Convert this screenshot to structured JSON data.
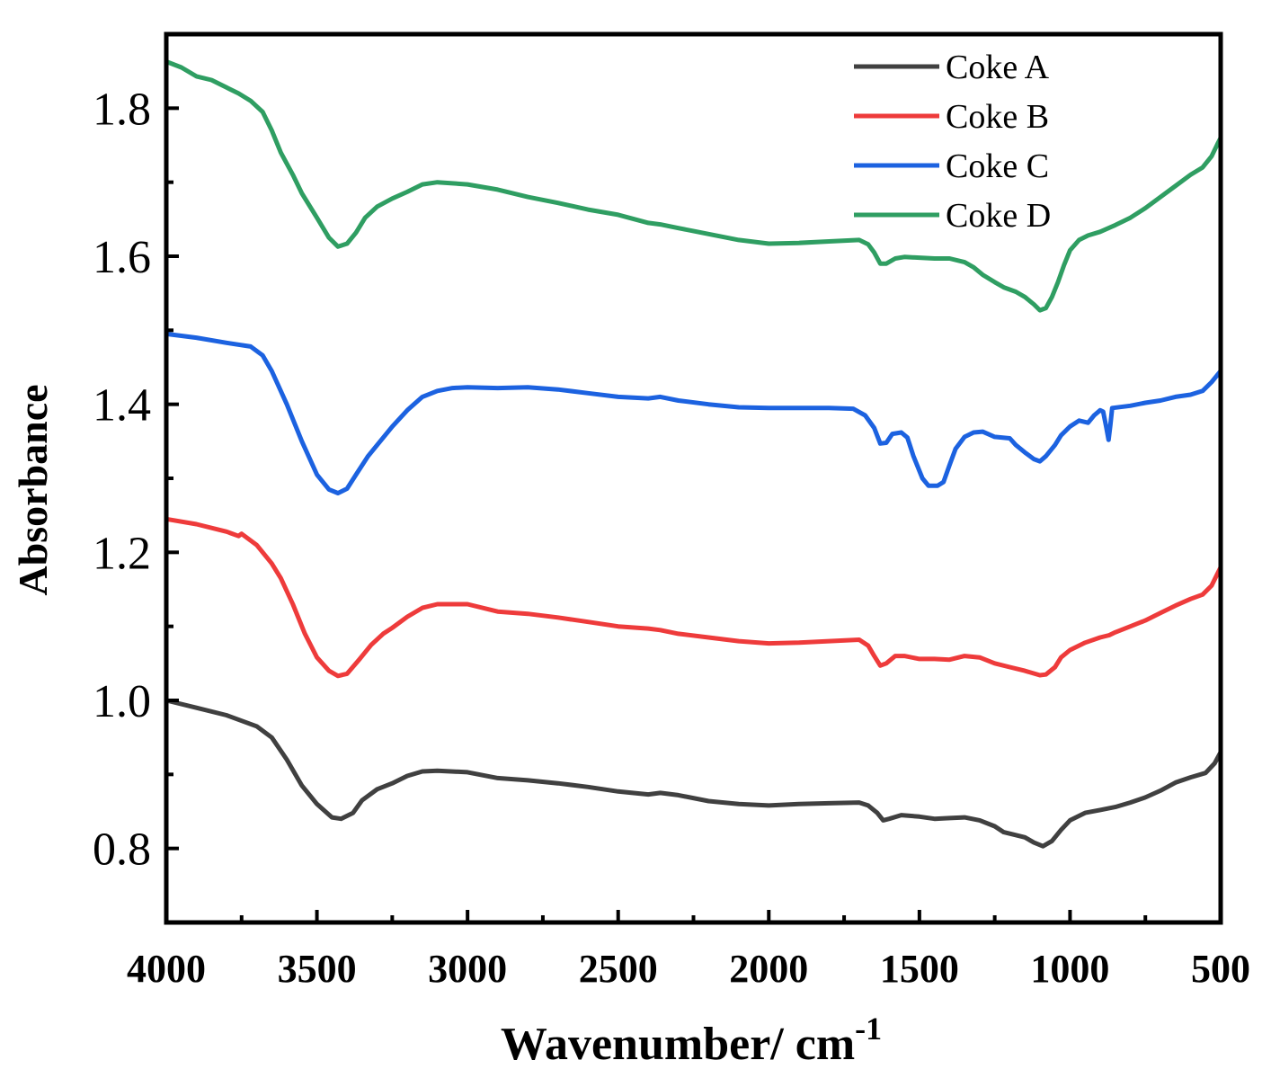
{
  "chart_data": {
    "type": "line",
    "title": "",
    "xlabel": "Wavenumber/ cm",
    "xlabel_superscript": "-1",
    "ylabel": "Absorbance",
    "xlim": [
      4000,
      500
    ],
    "ylim": [
      0.7,
      1.9
    ],
    "x_reversed": true,
    "x_ticks": [
      4000,
      3500,
      3000,
      2500,
      2000,
      1500,
      1000,
      500
    ],
    "x_tick_labels": [
      "4000",
      "3500",
      "3000",
      "2500",
      "2000",
      "1500",
      "1000",
      "500"
    ],
    "y_ticks": [
      0.8,
      1.0,
      1.2,
      1.4,
      1.6,
      1.8
    ],
    "y_tick_labels": [
      "0.8",
      "1.0",
      "1.2",
      "1.4",
      "1.6",
      "1.8"
    ],
    "grid": false,
    "legend_position": "top-right",
    "series": [
      {
        "name": "Coke A",
        "color": "#404040",
        "points": [
          [
            4000,
            1.0
          ],
          [
            3900,
            0.99
          ],
          [
            3800,
            0.98
          ],
          [
            3700,
            0.965
          ],
          [
            3650,
            0.95
          ],
          [
            3600,
            0.92
          ],
          [
            3550,
            0.885
          ],
          [
            3500,
            0.86
          ],
          [
            3450,
            0.842
          ],
          [
            3420,
            0.84
          ],
          [
            3380,
            0.848
          ],
          [
            3350,
            0.865
          ],
          [
            3300,
            0.88
          ],
          [
            3250,
            0.888
          ],
          [
            3200,
            0.898
          ],
          [
            3150,
            0.904
          ],
          [
            3100,
            0.905
          ],
          [
            3000,
            0.903
          ],
          [
            2900,
            0.895
          ],
          [
            2800,
            0.892
          ],
          [
            2700,
            0.888
          ],
          [
            2600,
            0.883
          ],
          [
            2500,
            0.877
          ],
          [
            2400,
            0.873
          ],
          [
            2360,
            0.875
          ],
          [
            2300,
            0.872
          ],
          [
            2200,
            0.864
          ],
          [
            2100,
            0.86
          ],
          [
            2000,
            0.858
          ],
          [
            1900,
            0.86
          ],
          [
            1800,
            0.861
          ],
          [
            1700,
            0.862
          ],
          [
            1670,
            0.858
          ],
          [
            1640,
            0.848
          ],
          [
            1620,
            0.838
          ],
          [
            1600,
            0.84
          ],
          [
            1560,
            0.845
          ],
          [
            1500,
            0.843
          ],
          [
            1450,
            0.84
          ],
          [
            1400,
            0.841
          ],
          [
            1350,
            0.842
          ],
          [
            1300,
            0.838
          ],
          [
            1250,
            0.83
          ],
          [
            1220,
            0.822
          ],
          [
            1200,
            0.82
          ],
          [
            1150,
            0.815
          ],
          [
            1120,
            0.808
          ],
          [
            1090,
            0.803
          ],
          [
            1060,
            0.81
          ],
          [
            1030,
            0.825
          ],
          [
            1000,
            0.838
          ],
          [
            950,
            0.848
          ],
          [
            900,
            0.852
          ],
          [
            850,
            0.856
          ],
          [
            800,
            0.862
          ],
          [
            750,
            0.869
          ],
          [
            700,
            0.878
          ],
          [
            650,
            0.889
          ],
          [
            600,
            0.896
          ],
          [
            550,
            0.902
          ],
          [
            520,
            0.915
          ],
          [
            500,
            0.93
          ]
        ]
      },
      {
        "name": "Coke B",
        "color": "#ee3b3b",
        "points": [
          [
            4000,
            1.245
          ],
          [
            3900,
            1.238
          ],
          [
            3800,
            1.228
          ],
          [
            3760,
            1.222
          ],
          [
            3750,
            1.225
          ],
          [
            3700,
            1.21
          ],
          [
            3650,
            1.185
          ],
          [
            3620,
            1.165
          ],
          [
            3580,
            1.13
          ],
          [
            3540,
            1.09
          ],
          [
            3500,
            1.058
          ],
          [
            3460,
            1.04
          ],
          [
            3430,
            1.033
          ],
          [
            3400,
            1.036
          ],
          [
            3360,
            1.055
          ],
          [
            3320,
            1.075
          ],
          [
            3280,
            1.09
          ],
          [
            3250,
            1.098
          ],
          [
            3200,
            1.113
          ],
          [
            3150,
            1.125
          ],
          [
            3100,
            1.13
          ],
          [
            3000,
            1.13
          ],
          [
            2900,
            1.12
          ],
          [
            2800,
            1.117
          ],
          [
            2700,
            1.112
          ],
          [
            2600,
            1.106
          ],
          [
            2500,
            1.1
          ],
          [
            2400,
            1.097
          ],
          [
            2360,
            1.095
          ],
          [
            2300,
            1.09
          ],
          [
            2200,
            1.085
          ],
          [
            2100,
            1.08
          ],
          [
            2000,
            1.077
          ],
          [
            1900,
            1.078
          ],
          [
            1800,
            1.08
          ],
          [
            1700,
            1.082
          ],
          [
            1670,
            1.074
          ],
          [
            1650,
            1.06
          ],
          [
            1630,
            1.047
          ],
          [
            1610,
            1.05
          ],
          [
            1580,
            1.06
          ],
          [
            1550,
            1.06
          ],
          [
            1500,
            1.056
          ],
          [
            1450,
            1.056
          ],
          [
            1400,
            1.055
          ],
          [
            1350,
            1.06
          ],
          [
            1300,
            1.058
          ],
          [
            1250,
            1.05
          ],
          [
            1200,
            1.045
          ],
          [
            1150,
            1.04
          ],
          [
            1100,
            1.034
          ],
          [
            1080,
            1.035
          ],
          [
            1050,
            1.045
          ],
          [
            1030,
            1.058
          ],
          [
            1000,
            1.068
          ],
          [
            950,
            1.078
          ],
          [
            900,
            1.085
          ],
          [
            870,
            1.088
          ],
          [
            850,
            1.092
          ],
          [
            800,
            1.1
          ],
          [
            750,
            1.108
          ],
          [
            700,
            1.118
          ],
          [
            650,
            1.128
          ],
          [
            600,
            1.137
          ],
          [
            560,
            1.143
          ],
          [
            530,
            1.155
          ],
          [
            500,
            1.18
          ]
        ]
      },
      {
        "name": "Coke C",
        "color": "#1c62e0",
        "points": [
          [
            4000,
            1.495
          ],
          [
            3900,
            1.49
          ],
          [
            3800,
            1.483
          ],
          [
            3720,
            1.478
          ],
          [
            3680,
            1.466
          ],
          [
            3650,
            1.445
          ],
          [
            3600,
            1.4
          ],
          [
            3550,
            1.35
          ],
          [
            3500,
            1.305
          ],
          [
            3460,
            1.285
          ],
          [
            3430,
            1.28
          ],
          [
            3400,
            1.286
          ],
          [
            3370,
            1.305
          ],
          [
            3330,
            1.33
          ],
          [
            3300,
            1.345
          ],
          [
            3250,
            1.37
          ],
          [
            3200,
            1.392
          ],
          [
            3150,
            1.41
          ],
          [
            3100,
            1.418
          ],
          [
            3050,
            1.422
          ],
          [
            3000,
            1.423
          ],
          [
            2900,
            1.422
          ],
          [
            2800,
            1.423
          ],
          [
            2700,
            1.42
          ],
          [
            2600,
            1.415
          ],
          [
            2500,
            1.41
          ],
          [
            2400,
            1.408
          ],
          [
            2360,
            1.41
          ],
          [
            2300,
            1.405
          ],
          [
            2200,
            1.4
          ],
          [
            2100,
            1.396
          ],
          [
            2000,
            1.395
          ],
          [
            1900,
            1.395
          ],
          [
            1800,
            1.395
          ],
          [
            1720,
            1.394
          ],
          [
            1680,
            1.385
          ],
          [
            1650,
            1.368
          ],
          [
            1630,
            1.347
          ],
          [
            1610,
            1.348
          ],
          [
            1590,
            1.36
          ],
          [
            1560,
            1.362
          ],
          [
            1540,
            1.355
          ],
          [
            1520,
            1.33
          ],
          [
            1490,
            1.3
          ],
          [
            1470,
            1.29
          ],
          [
            1440,
            1.29
          ],
          [
            1420,
            1.295
          ],
          [
            1400,
            1.318
          ],
          [
            1380,
            1.34
          ],
          [
            1350,
            1.356
          ],
          [
            1320,
            1.362
          ],
          [
            1290,
            1.363
          ],
          [
            1250,
            1.356
          ],
          [
            1200,
            1.354
          ],
          [
            1180,
            1.345
          ],
          [
            1150,
            1.335
          ],
          [
            1120,
            1.326
          ],
          [
            1100,
            1.323
          ],
          [
            1080,
            1.33
          ],
          [
            1050,
            1.345
          ],
          [
            1030,
            1.358
          ],
          [
            1000,
            1.37
          ],
          [
            970,
            1.378
          ],
          [
            940,
            1.375
          ],
          [
            920,
            1.385
          ],
          [
            900,
            1.392
          ],
          [
            890,
            1.39
          ],
          [
            880,
            1.37
          ],
          [
            872,
            1.352
          ],
          [
            866,
            1.372
          ],
          [
            860,
            1.395
          ],
          [
            800,
            1.398
          ],
          [
            750,
            1.402
          ],
          [
            700,
            1.405
          ],
          [
            650,
            1.41
          ],
          [
            600,
            1.413
          ],
          [
            560,
            1.418
          ],
          [
            530,
            1.43
          ],
          [
            500,
            1.445
          ]
        ]
      },
      {
        "name": "Coke D",
        "color": "#2f9e62",
        "points": [
          [
            4000,
            1.863
          ],
          [
            3950,
            1.855
          ],
          [
            3900,
            1.843
          ],
          [
            3850,
            1.838
          ],
          [
            3800,
            1.828
          ],
          [
            3760,
            1.82
          ],
          [
            3720,
            1.81
          ],
          [
            3680,
            1.795
          ],
          [
            3650,
            1.77
          ],
          [
            3620,
            1.74
          ],
          [
            3580,
            1.71
          ],
          [
            3550,
            1.685
          ],
          [
            3500,
            1.652
          ],
          [
            3460,
            1.625
          ],
          [
            3430,
            1.613
          ],
          [
            3400,
            1.617
          ],
          [
            3370,
            1.632
          ],
          [
            3340,
            1.652
          ],
          [
            3300,
            1.667
          ],
          [
            3250,
            1.678
          ],
          [
            3200,
            1.687
          ],
          [
            3150,
            1.697
          ],
          [
            3100,
            1.7
          ],
          [
            3000,
            1.697
          ],
          [
            2900,
            1.69
          ],
          [
            2800,
            1.68
          ],
          [
            2700,
            1.672
          ],
          [
            2600,
            1.663
          ],
          [
            2500,
            1.656
          ],
          [
            2400,
            1.645
          ],
          [
            2360,
            1.643
          ],
          [
            2300,
            1.638
          ],
          [
            2200,
            1.63
          ],
          [
            2100,
            1.622
          ],
          [
            2000,
            1.617
          ],
          [
            1900,
            1.618
          ],
          [
            1800,
            1.62
          ],
          [
            1700,
            1.622
          ],
          [
            1670,
            1.616
          ],
          [
            1650,
            1.605
          ],
          [
            1630,
            1.59
          ],
          [
            1610,
            1.59
          ],
          [
            1580,
            1.597
          ],
          [
            1550,
            1.599
          ],
          [
            1500,
            1.598
          ],
          [
            1450,
            1.597
          ],
          [
            1400,
            1.597
          ],
          [
            1350,
            1.592
          ],
          [
            1320,
            1.585
          ],
          [
            1290,
            1.575
          ],
          [
            1250,
            1.565
          ],
          [
            1220,
            1.558
          ],
          [
            1180,
            1.552
          ],
          [
            1150,
            1.545
          ],
          [
            1120,
            1.535
          ],
          [
            1100,
            1.527
          ],
          [
            1080,
            1.53
          ],
          [
            1060,
            1.545
          ],
          [
            1040,
            1.565
          ],
          [
            1020,
            1.588
          ],
          [
            1000,
            1.608
          ],
          [
            970,
            1.622
          ],
          [
            940,
            1.628
          ],
          [
            900,
            1.633
          ],
          [
            850,
            1.642
          ],
          [
            800,
            1.652
          ],
          [
            750,
            1.665
          ],
          [
            700,
            1.68
          ],
          [
            650,
            1.695
          ],
          [
            600,
            1.71
          ],
          [
            560,
            1.72
          ],
          [
            530,
            1.735
          ],
          [
            510,
            1.752
          ],
          [
            500,
            1.76
          ]
        ]
      }
    ]
  }
}
